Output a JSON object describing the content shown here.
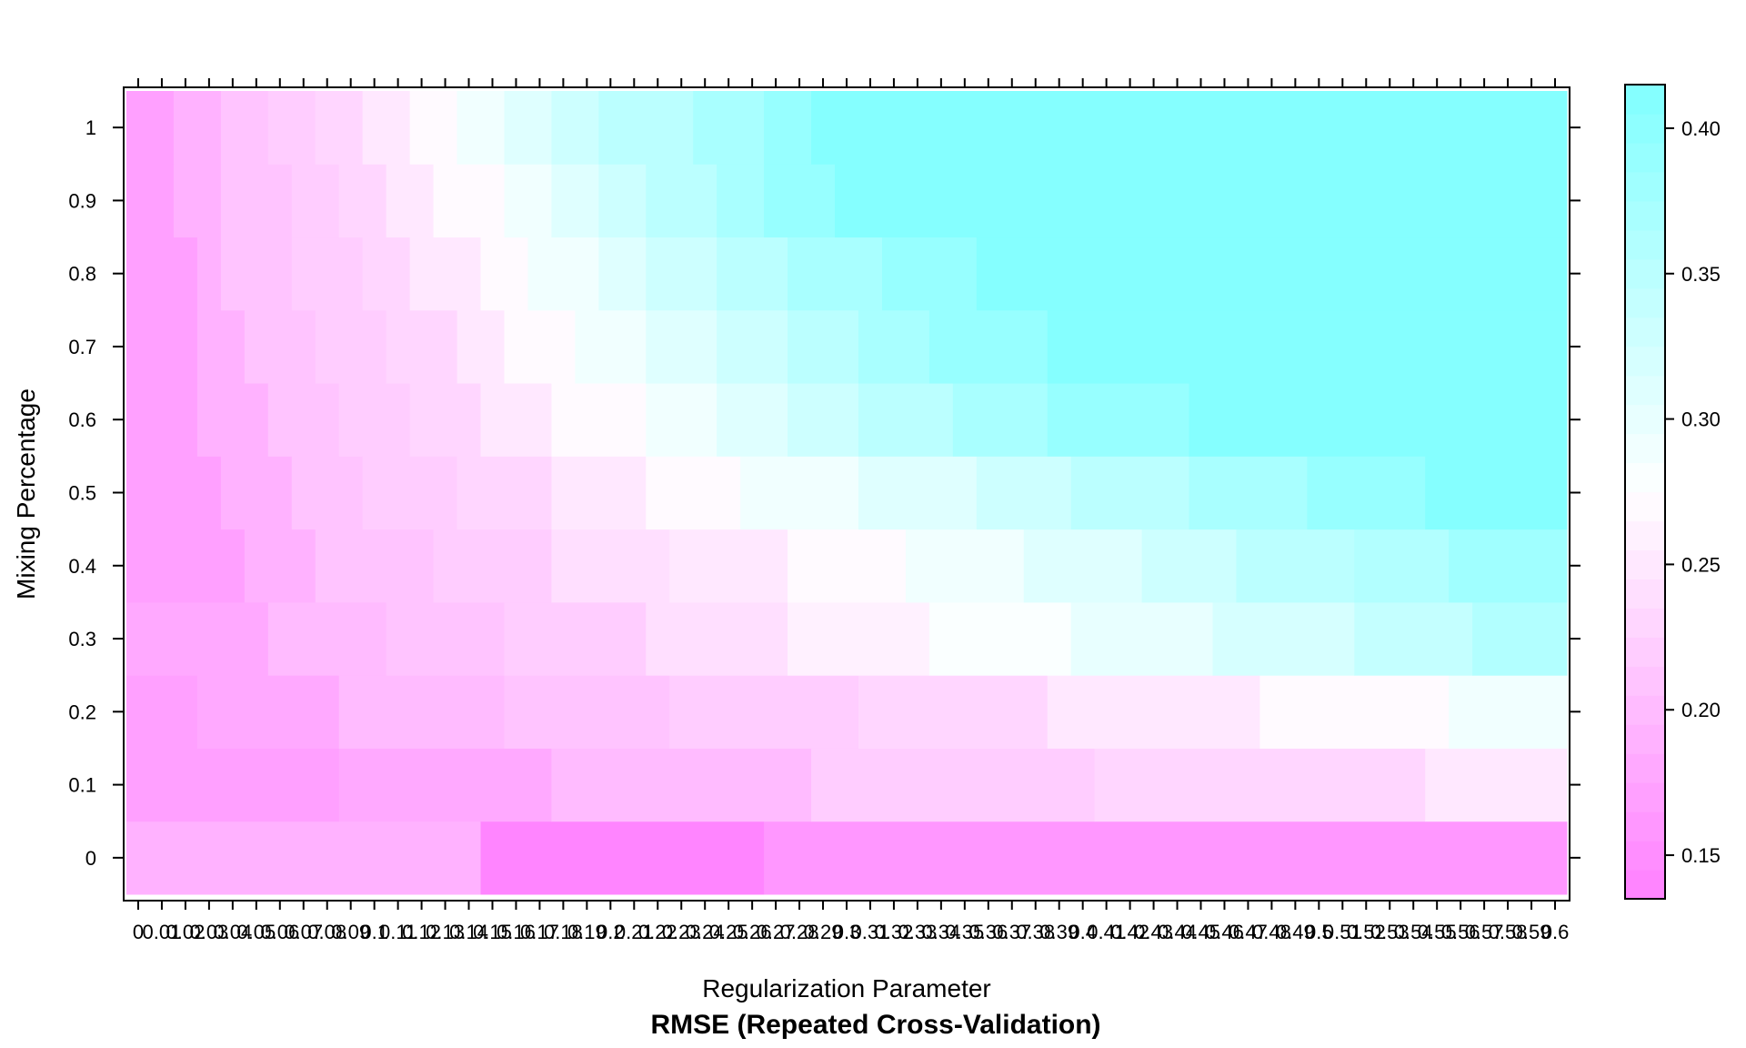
{
  "chart_data": {
    "type": "heatmap",
    "title": "RMSE (Repeated Cross-Validation)",
    "xlabel": "Regularization Parameter",
    "ylabel": "Mixing Percentage",
    "x_tick_labels": [
      "0",
      "0.01",
      "0.02",
      "0.03",
      "0.04",
      "0.05",
      "0.06",
      "0.07",
      "0.08",
      "0.09",
      "0.1",
      "0.11",
      "0.12",
      "0.13",
      "0.14",
      "0.15",
      "0.16",
      "0.17",
      "0.18",
      "0.19",
      "0.2",
      "0.21",
      "0.22",
      "0.23",
      "0.24",
      "0.25",
      "0.26",
      "0.27",
      "0.28",
      "0.29",
      "0.3",
      "0.31",
      "0.32",
      "0.33",
      "0.34",
      "0.35",
      "0.36",
      "0.37",
      "0.38",
      "0.39",
      "0.4",
      "0.41",
      "0.42",
      "0.43",
      "0.44",
      "0.45",
      "0.46",
      "0.47",
      "0.48",
      "0.49",
      "0.5",
      "0.51",
      "0.52",
      "0.53",
      "0.54",
      "0.55",
      "0.56",
      "0.57",
      "0.58",
      "0.59",
      "0.6"
    ],
    "y_tick_labels": [
      "0",
      "0.1",
      "0.2",
      "0.3",
      "0.4",
      "0.5",
      "0.6",
      "0.7",
      "0.8",
      "0.9",
      "1"
    ],
    "colorbar": {
      "ticks": [
        "0.15",
        "0.20",
        "0.25",
        "0.30",
        "0.35",
        "0.40"
      ],
      "range": [
        0.135,
        0.415
      ],
      "low_color": "#ff80ff",
      "high_color": "#80ffff",
      "mid_color": "#ffffff"
    },
    "x_range": [
      0,
      0.6
    ],
    "y_range": [
      0,
      1
    ],
    "z_by_row": {
      "0": [
        [
          0,
          0.14,
          0.19
        ],
        [
          0.15,
          0.26,
          0.14
        ],
        [
          0.27,
          0.6,
          0.16
        ]
      ],
      "0.1": [
        [
          0,
          0.08,
          0.17
        ],
        [
          0.09,
          0.17,
          0.18
        ],
        [
          0.18,
          0.28,
          0.2
        ],
        [
          0.29,
          0.4,
          0.22
        ],
        [
          0.41,
          0.54,
          0.23
        ],
        [
          0.55,
          0.6,
          0.25
        ]
      ],
      "0.2": [
        [
          0,
          0.02,
          0.17
        ],
        [
          0.03,
          0.08,
          0.18
        ],
        [
          0.09,
          0.15,
          0.2
        ],
        [
          0.16,
          0.22,
          0.21
        ],
        [
          0.23,
          0.3,
          0.22
        ],
        [
          0.31,
          0.38,
          0.23
        ],
        [
          0.39,
          0.47,
          0.25
        ],
        [
          0.48,
          0.55,
          0.27
        ],
        [
          0.56,
          0.6,
          0.29
        ]
      ],
      "0.3": [
        [
          0,
          0.05,
          0.18
        ],
        [
          0.06,
          0.1,
          0.2
        ],
        [
          0.11,
          0.15,
          0.21
        ],
        [
          0.16,
          0.21,
          0.22
        ],
        [
          0.22,
          0.27,
          0.24
        ],
        [
          0.28,
          0.33,
          0.26
        ],
        [
          0.34,
          0.39,
          0.28
        ],
        [
          0.4,
          0.45,
          0.3
        ],
        [
          0.46,
          0.51,
          0.32
        ],
        [
          0.52,
          0.56,
          0.34
        ],
        [
          0.57,
          0.6,
          0.36
        ]
      ],
      "0.4": [
        [
          0,
          0.04,
          0.17
        ],
        [
          0.05,
          0.07,
          0.19
        ],
        [
          0.08,
          0.12,
          0.21
        ],
        [
          0.13,
          0.17,
          0.22
        ],
        [
          0.18,
          0.22,
          0.24
        ],
        [
          0.23,
          0.27,
          0.25
        ],
        [
          0.28,
          0.32,
          0.27
        ],
        [
          0.33,
          0.37,
          0.29
        ],
        [
          0.38,
          0.42,
          0.31
        ],
        [
          0.43,
          0.46,
          0.33
        ],
        [
          0.47,
          0.51,
          0.35
        ],
        [
          0.52,
          0.55,
          0.36
        ],
        [
          0.56,
          0.6,
          0.38
        ]
      ],
      "0.5": [
        [
          0,
          0.03,
          0.17
        ],
        [
          0.04,
          0.06,
          0.19
        ],
        [
          0.07,
          0.09,
          0.21
        ],
        [
          0.1,
          0.13,
          0.22
        ],
        [
          0.14,
          0.17,
          0.23
        ],
        [
          0.18,
          0.21,
          0.25
        ],
        [
          0.22,
          0.25,
          0.27
        ],
        [
          0.26,
          0.3,
          0.29
        ],
        [
          0.31,
          0.35,
          0.31
        ],
        [
          0.36,
          0.39,
          0.33
        ],
        [
          0.4,
          0.44,
          0.35
        ],
        [
          0.45,
          0.49,
          0.37
        ],
        [
          0.5,
          0.54,
          0.39
        ],
        [
          0.55,
          0.6,
          0.41
        ]
      ],
      "0.6": [
        [
          0,
          0.02,
          0.17
        ],
        [
          0.03,
          0.05,
          0.19
        ],
        [
          0.06,
          0.08,
          0.21
        ],
        [
          0.09,
          0.11,
          0.22
        ],
        [
          0.12,
          0.14,
          0.23
        ],
        [
          0.15,
          0.17,
          0.25
        ],
        [
          0.18,
          0.21,
          0.27
        ],
        [
          0.22,
          0.24,
          0.29
        ],
        [
          0.25,
          0.27,
          0.31
        ],
        [
          0.28,
          0.3,
          0.33
        ],
        [
          0.31,
          0.34,
          0.35
        ],
        [
          0.35,
          0.38,
          0.37
        ],
        [
          0.39,
          0.44,
          0.39
        ],
        [
          0.45,
          0.6,
          0.41
        ]
      ],
      "0.7": [
        [
          0,
          0.02,
          0.17
        ],
        [
          0.03,
          0.04,
          0.19
        ],
        [
          0.05,
          0.07,
          0.21
        ],
        [
          0.08,
          0.1,
          0.22
        ],
        [
          0.11,
          0.13,
          0.23
        ],
        [
          0.14,
          0.15,
          0.25
        ],
        [
          0.16,
          0.18,
          0.27
        ],
        [
          0.19,
          0.21,
          0.29
        ],
        [
          0.22,
          0.24,
          0.31
        ],
        [
          0.25,
          0.27,
          0.33
        ],
        [
          0.28,
          0.3,
          0.35
        ],
        [
          0.31,
          0.33,
          0.37
        ],
        [
          0.34,
          0.38,
          0.39
        ],
        [
          0.39,
          0.6,
          0.41
        ]
      ],
      "0.8": [
        [
          0,
          0.02,
          0.17
        ],
        [
          0.03,
          0.03,
          0.19
        ],
        [
          0.04,
          0.06,
          0.21
        ],
        [
          0.07,
          0.09,
          0.22
        ],
        [
          0.1,
          0.11,
          0.23
        ],
        [
          0.12,
          0.14,
          0.25
        ],
        [
          0.15,
          0.16,
          0.27
        ],
        [
          0.17,
          0.19,
          0.29
        ],
        [
          0.2,
          0.21,
          0.31
        ],
        [
          0.22,
          0.24,
          0.33
        ],
        [
          0.25,
          0.27,
          0.35
        ],
        [
          0.28,
          0.31,
          0.37
        ],
        [
          0.32,
          0.35,
          0.39
        ],
        [
          0.36,
          0.6,
          0.41
        ]
      ],
      "0.9": [
        [
          0,
          0.01,
          0.17
        ],
        [
          0.02,
          0.03,
          0.19
        ],
        [
          0.04,
          0.06,
          0.21
        ],
        [
          0.07,
          0.08,
          0.22
        ],
        [
          0.09,
          0.1,
          0.23
        ],
        [
          0.11,
          0.12,
          0.25
        ],
        [
          0.13,
          0.15,
          0.27
        ],
        [
          0.16,
          0.17,
          0.29
        ],
        [
          0.18,
          0.19,
          0.31
        ],
        [
          0.2,
          0.21,
          0.33
        ],
        [
          0.22,
          0.24,
          0.35
        ],
        [
          0.25,
          0.26,
          0.37
        ],
        [
          0.27,
          0.29,
          0.39
        ],
        [
          0.3,
          0.6,
          0.41
        ]
      ],
      "1": [
        [
          0,
          0.01,
          0.17
        ],
        [
          0.02,
          0.03,
          0.19
        ],
        [
          0.04,
          0.05,
          0.21
        ],
        [
          0.06,
          0.07,
          0.22
        ],
        [
          0.08,
          0.09,
          0.23
        ],
        [
          0.1,
          0.11,
          0.25
        ],
        [
          0.12,
          0.13,
          0.27
        ],
        [
          0.14,
          0.15,
          0.29
        ],
        [
          0.16,
          0.17,
          0.31
        ],
        [
          0.18,
          0.19,
          0.33
        ],
        [
          0.2,
          0.23,
          0.35
        ],
        [
          0.24,
          0.26,
          0.37
        ],
        [
          0.27,
          0.28,
          0.39
        ],
        [
          0.29,
          0.6,
          0.41
        ]
      ]
    }
  }
}
